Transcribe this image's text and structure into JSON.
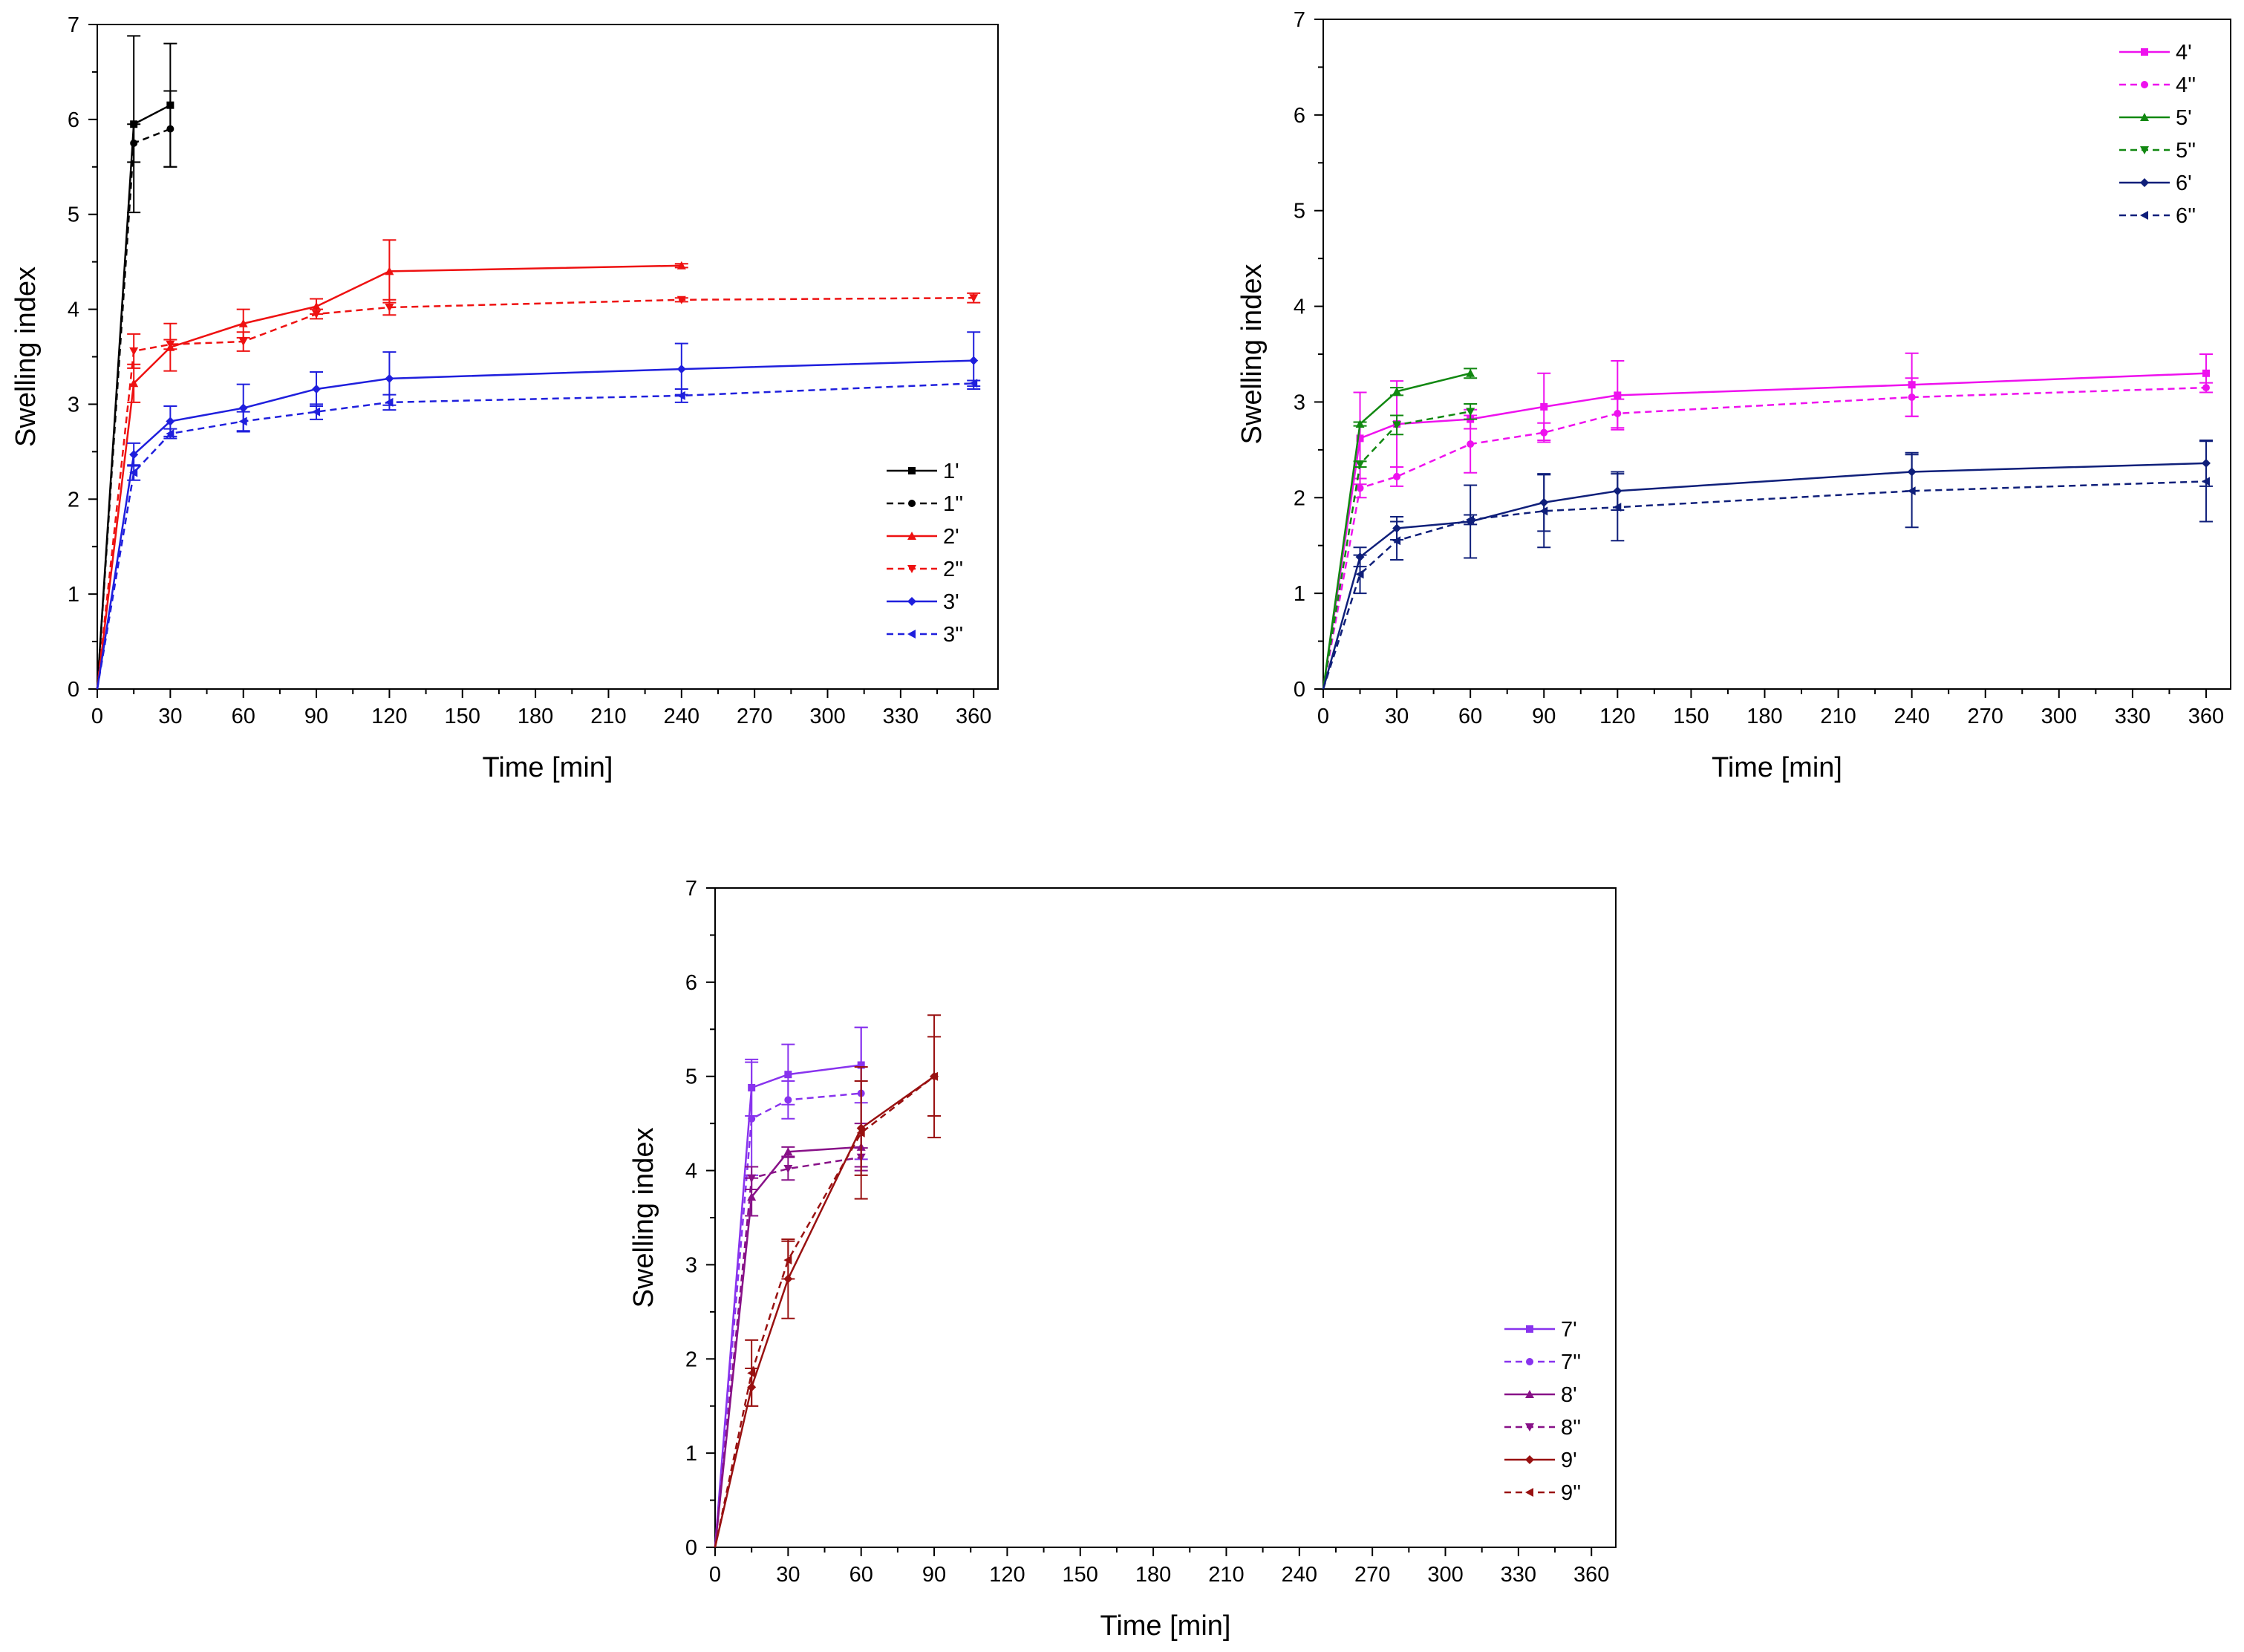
{
  "chart_data": [
    {
      "type": "line",
      "xlabel": "Time [min]",
      "ylabel": "Swelling index",
      "xlim": [
        0,
        370
      ],
      "ylim": [
        0,
        7
      ],
      "xticks": [
        0,
        30,
        60,
        90,
        120,
        150,
        180,
        210,
        240,
        270,
        300,
        330,
        360
      ],
      "yticks": [
        0,
        1,
        2,
        3,
        4,
        5,
        6,
        7
      ],
      "grid": false,
      "legend_position": "bottom-right",
      "series": [
        {
          "name": "1'",
          "color": "#000000",
          "dashed": false,
          "marker": "square",
          "x": [
            0,
            15,
            30
          ],
          "y": [
            0,
            5.95,
            6.15
          ],
          "err": [
            0,
            0.93,
            0.65
          ]
        },
        {
          "name": "1''",
          "color": "#000000",
          "dashed": true,
          "marker": "circle",
          "x": [
            0,
            15,
            30
          ],
          "y": [
            0,
            5.75,
            5.9
          ],
          "err": [
            0,
            0.2,
            0.4
          ]
        },
        {
          "name": "2'",
          "color": "#ee1111",
          "dashed": false,
          "marker": "triangle-up",
          "x": [
            0,
            15,
            30,
            60,
            90,
            120,
            240
          ],
          "y": [
            0,
            3.22,
            3.6,
            3.85,
            4.03,
            4.4,
            4.46
          ],
          "err": [
            0,
            0.2,
            0.25,
            0.15,
            0.08,
            0.33,
            0.02
          ]
        },
        {
          "name": "2''",
          "color": "#ee1111",
          "dashed": true,
          "marker": "triangle-down",
          "x": [
            0,
            15,
            30,
            60,
            90,
            120,
            240,
            360
          ],
          "y": [
            0,
            3.56,
            3.63,
            3.66,
            3.95,
            4.02,
            4.1,
            4.12
          ],
          "err": [
            0,
            0.18,
            0.05,
            0.1,
            0.05,
            0.08,
            0.02,
            0.05
          ]
        },
        {
          "name": "3'",
          "color": "#1f1fdd",
          "dashed": false,
          "marker": "diamond",
          "x": [
            0,
            15,
            30,
            60,
            90,
            120,
            240,
            360
          ],
          "y": [
            0,
            2.47,
            2.82,
            2.96,
            3.16,
            3.27,
            3.37,
            3.46
          ],
          "err": [
            0,
            0.12,
            0.16,
            0.25,
            0.18,
            0.28,
            0.27,
            0.3
          ]
        },
        {
          "name": "3''",
          "color": "#1f1fdd",
          "dashed": true,
          "marker": "triangle-left",
          "x": [
            0,
            15,
            30,
            60,
            90,
            120,
            240,
            360
          ],
          "y": [
            0,
            2.28,
            2.69,
            2.82,
            2.92,
            3.02,
            3.09,
            3.22
          ],
          "err": [
            0,
            0.08,
            0.05,
            0.1,
            0.08,
            0.08,
            0.07,
            0.03
          ]
        }
      ]
    },
    {
      "type": "line",
      "xlabel": "Time [min]",
      "ylabel": "Swelling index",
      "xlim": [
        0,
        370
      ],
      "ylim": [
        0,
        7
      ],
      "xticks": [
        0,
        30,
        60,
        90,
        120,
        150,
        180,
        210,
        240,
        270,
        300,
        330,
        360
      ],
      "yticks": [
        0,
        1,
        2,
        3,
        4,
        5,
        6,
        7
      ],
      "grid": false,
      "legend_position": "top-right",
      "series": [
        {
          "name": "4'",
          "color": "#ee11ee",
          "dashed": false,
          "marker": "square",
          "x": [
            0,
            15,
            30,
            60,
            90,
            120,
            240,
            360
          ],
          "y": [
            0,
            2.62,
            2.77,
            2.82,
            2.95,
            3.07,
            3.18,
            3.3
          ],
          "err": [
            0,
            0.48,
            0.45,
            0.1,
            0.35,
            0.36,
            0.33,
            0.2
          ]
        },
        {
          "name": "4''",
          "color": "#ee11ee",
          "dashed": true,
          "marker": "circle",
          "x": [
            0,
            15,
            30,
            60,
            90,
            120,
            240,
            360
          ],
          "y": [
            0,
            2.1,
            2.22,
            2.56,
            2.68,
            2.88,
            3.05,
            3.15
          ],
          "err": [
            0,
            0.1,
            0.1,
            0.3,
            0.1,
            0.15,
            0.2,
            0.05
          ]
        },
        {
          "name": "5'",
          "color": "#118811",
          "dashed": false,
          "marker": "triangle-up",
          "x": [
            0,
            15,
            30,
            60
          ],
          "y": [
            0,
            2.77,
            3.11,
            3.3
          ],
          "err": [
            0,
            0.02,
            0.04,
            0.05
          ]
        },
        {
          "name": "5''",
          "color": "#118811",
          "dashed": true,
          "marker": "triangle-down",
          "x": [
            0,
            15,
            30,
            60
          ],
          "y": [
            0,
            2.35,
            2.76,
            2.9
          ],
          "err": [
            0,
            0.03,
            0.1,
            0.08
          ]
        },
        {
          "name": "6'",
          "color": "#0f1f7a",
          "dashed": false,
          "marker": "diamond",
          "x": [
            0,
            15,
            30,
            60,
            90,
            120,
            240,
            360
          ],
          "y": [
            0,
            1.38,
            1.68,
            1.75,
            1.95,
            2.07,
            2.27,
            2.36
          ],
          "err": [
            0,
            0.1,
            0.12,
            0.38,
            0.3,
            0.2,
            0.2,
            0.24
          ]
        },
        {
          "name": "6''",
          "color": "#0f1f7a",
          "dashed": true,
          "marker": "triangle-left",
          "x": [
            0,
            15,
            30,
            60,
            90,
            120,
            240,
            360
          ],
          "y": [
            0,
            1.2,
            1.55,
            1.77,
            1.86,
            1.9,
            2.07,
            2.17
          ],
          "err": [
            0,
            0.2,
            0.2,
            0.05,
            0.38,
            0.35,
            0.38,
            0.42
          ]
        }
      ]
    },
    {
      "type": "line",
      "xlabel": "Time [min]",
      "ylabel": "Swelling index",
      "xlim": [
        0,
        370
      ],
      "ylim": [
        0,
        7
      ],
      "xticks": [
        0,
        30,
        60,
        90,
        120,
        150,
        180,
        210,
        240,
        270,
        300,
        330,
        360
      ],
      "yticks": [
        0,
        1,
        2,
        3,
        4,
        5,
        6,
        7
      ],
      "grid": false,
      "legend_position": "bottom-right",
      "series": [
        {
          "name": "7'",
          "color": "#8833ee",
          "dashed": false,
          "marker": "square",
          "x": [
            0,
            15,
            30,
            60
          ],
          "y": [
            0,
            4.88,
            5.02,
            5.12
          ],
          "err": [
            0,
            0.3,
            0.32,
            0.4
          ]
        },
        {
          "name": "7''",
          "color": "#8833ee",
          "dashed": true,
          "marker": "circle",
          "x": [
            0,
            15,
            30,
            60
          ],
          "y": [
            0,
            4.55,
            4.75,
            4.82
          ],
          "err": [
            0,
            0.6,
            0.2,
            0.7
          ]
        },
        {
          "name": "8'",
          "color": "#881188",
          "dashed": false,
          "marker": "triangle-up",
          "x": [
            0,
            15,
            30,
            60
          ],
          "y": [
            0,
            3.72,
            4.2,
            4.25
          ],
          "err": [
            0,
            0.2,
            0.05,
            0.25
          ]
        },
        {
          "name": "8''",
          "color": "#881188",
          "dashed": true,
          "marker": "triangle-down",
          "x": [
            0,
            15,
            30,
            60
          ],
          "y": [
            0,
            3.92,
            4.02,
            4.14
          ],
          "err": [
            0,
            0.12,
            0.12,
            0.1
          ]
        },
        {
          "name": "9'",
          "color": "#991111",
          "dashed": false,
          "marker": "diamond",
          "x": [
            0,
            15,
            30,
            60,
            90
          ],
          "y": [
            0,
            1.7,
            2.85,
            4.45,
            5.0
          ],
          "err": [
            0,
            0.2,
            0.42,
            0.5,
            0.42
          ]
        },
        {
          "name": "9''",
          "color": "#991111",
          "dashed": true,
          "marker": "triangle-left",
          "x": [
            0,
            15,
            30,
            60,
            90
          ],
          "y": [
            0,
            1.85,
            3.05,
            4.4,
            5.0
          ],
          "err": [
            0,
            0.35,
            0.2,
            0.7,
            0.65
          ]
        }
      ]
    }
  ]
}
